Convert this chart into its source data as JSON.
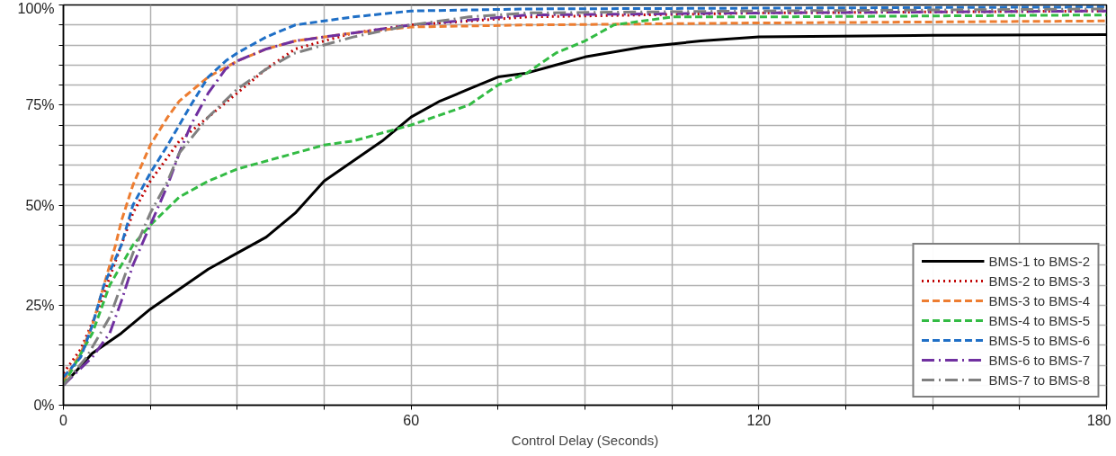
{
  "chart_data": {
    "type": "line",
    "xlabel": "Control Delay (Seconds)",
    "xlim": [
      0,
      180
    ],
    "ylim": [
      0,
      100
    ],
    "xticks": [
      0,
      {
        "value": 15,
        "label": null
      },
      {
        "value": 30,
        "label": null
      },
      {
        "value": 45,
        "label": null
      },
      60,
      {
        "value": 75,
        "label": null
      },
      {
        "value": 90,
        "label": null
      },
      {
        "value": 105,
        "label": null
      },
      120,
      {
        "value": 135,
        "label": null
      },
      {
        "value": 150,
        "label": null
      },
      {
        "value": 165,
        "label": null
      },
      180
    ],
    "yticks": [
      {
        "value": 0,
        "label": "0%"
      },
      {
        "value": 5,
        "label": null
      },
      {
        "value": 10,
        "label": null
      },
      {
        "value": 15,
        "label": null
      },
      {
        "value": 20,
        "label": null
      },
      {
        "value": 25,
        "label": "25%"
      },
      {
        "value": 30,
        "label": null
      },
      {
        "value": 35,
        "label": null
      },
      {
        "value": 40,
        "label": null
      },
      {
        "value": 45,
        "label": null
      },
      {
        "value": 50,
        "label": "50%"
      },
      {
        "value": 55,
        "label": null
      },
      {
        "value": 60,
        "label": null
      },
      {
        "value": 65,
        "label": null
      },
      {
        "value": 70,
        "label": null
      },
      {
        "value": 75,
        "label": "75%"
      },
      {
        "value": 80,
        "label": null
      },
      {
        "value": 85,
        "label": null
      },
      {
        "value": 90,
        "label": null
      },
      {
        "value": 95,
        "label": null
      },
      {
        "value": 100,
        "label": "100%"
      }
    ],
    "grid": true,
    "legend": "bottom right",
    "marker": "none",
    "series": [
      {
        "name": "BMS-1 to BMS-2",
        "color": "#000000",
        "line_style": "solid",
        "x": [
          0,
          5,
          10,
          15,
          20,
          25,
          30,
          35,
          40,
          45,
          50,
          55,
          60,
          65,
          70,
          75,
          80,
          85,
          90,
          100,
          110,
          120,
          150,
          180
        ],
        "values": [
          5,
          13,
          18,
          24,
          29,
          34,
          38,
          42,
          48,
          56,
          61,
          66,
          72,
          76,
          79,
          82,
          83,
          85,
          87,
          89.5,
          91,
          92,
          92.4,
          92.6
        ]
      },
      {
        "name": "BMS-2 to BMS-3",
        "color": "#c00000",
        "line_style": "dotted",
        "x": [
          0,
          3,
          6,
          8,
          10,
          12,
          15,
          18,
          20,
          25,
          30,
          35,
          40,
          50,
          60,
          80,
          120,
          180
        ],
        "values": [
          8,
          14,
          24,
          32,
          40,
          48,
          56,
          62,
          66,
          72,
          78,
          84,
          89,
          93,
          95,
          97,
          98,
          98.5
        ]
      },
      {
        "name": "BMS-3 to BMS-4",
        "color": "#ed7d31",
        "line_style": "dashed",
        "x": [
          0,
          3,
          5,
          7,
          9,
          10,
          12,
          15,
          18,
          20,
          25,
          30,
          35,
          40,
          50,
          60,
          80,
          120,
          180
        ],
        "values": [
          6,
          13,
          20,
          30,
          40,
          46,
          55,
          65,
          72,
          76,
          82,
          86,
          89,
          91,
          93,
          94.5,
          95,
          95.5,
          96
        ]
      },
      {
        "name": "BMS-4 to BMS-5",
        "color": "#33bb44",
        "line_style": "dashed",
        "x": [
          0,
          5,
          8,
          10,
          12,
          15,
          20,
          25,
          30,
          40,
          45,
          50,
          60,
          70,
          75,
          80,
          85,
          90,
          95,
          105,
          120,
          180
        ],
        "values": [
          5,
          18,
          30,
          35,
          40,
          45,
          52,
          56,
          59,
          63,
          65,
          66,
          70,
          75,
          80,
          83,
          88,
          91,
          95,
          97,
          97,
          97.5
        ]
      },
      {
        "name": "BMS-5 to BMS-6",
        "color": "#1f6fc6",
        "line_style": "dashed",
        "x": [
          0,
          3,
          5,
          7,
          10,
          12,
          15,
          18,
          20,
          22,
          25,
          28,
          30,
          35,
          40,
          50,
          60,
          80,
          180
        ],
        "values": [
          7,
          12,
          20,
          30,
          40,
          50,
          58,
          65,
          70,
          75,
          82,
          86,
          88,
          92,
          95,
          97,
          98.5,
          99,
          99.5
        ]
      },
      {
        "name": "BMS-6 to BMS-7",
        "color": "#7030a0",
        "line_style": "dashdot",
        "x": [
          0,
          5,
          8,
          10,
          12,
          15,
          18,
          20,
          22,
          25,
          28,
          30,
          35,
          40,
          50,
          60,
          80,
          120,
          180
        ],
        "values": [
          5,
          12,
          18,
          26,
          35,
          45,
          55,
          63,
          70,
          78,
          84,
          86,
          89,
          91,
          93,
          95,
          97.5,
          98,
          98.5
        ]
      },
      {
        "name": "BMS-7 to BMS-8",
        "color": "#808080",
        "line_style": "dashdot",
        "x": [
          0,
          4,
          8,
          10,
          12,
          15,
          18,
          20,
          25,
          30,
          35,
          40,
          50,
          60,
          70,
          80,
          120,
          180
        ],
        "values": [
          5,
          12,
          22,
          30,
          38,
          48,
          56,
          63,
          72,
          79,
          84,
          88,
          92,
          95,
          97,
          98,
          98.5,
          99
        ]
      }
    ]
  }
}
